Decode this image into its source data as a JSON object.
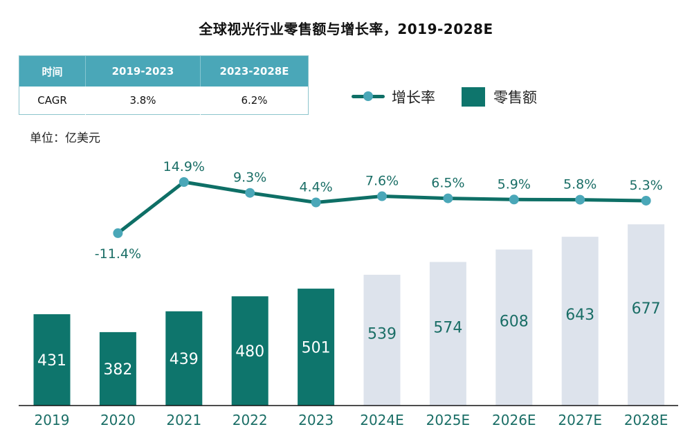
{
  "title": "全球视光行业零售额与增长率，2019-2028E",
  "cagr_table": {
    "headers": [
      "时间",
      "2019-2023",
      "2023-2028E"
    ],
    "row": [
      "CAGR",
      "3.8%",
      "6.2%"
    ]
  },
  "unit_label": "单位：亿美元",
  "legend": {
    "line_label": "增长率",
    "bar_label": "零售额"
  },
  "colors": {
    "actual_bar": "#0e756c",
    "forecast_bar": "#dde3ec",
    "line": "#0e6f66",
    "marker": "#4aa7b8",
    "label_text": "#1a6e66",
    "axis": "#111111"
  },
  "chart_data": {
    "type": "bar",
    "title": "全球视光行业零售额与增长率，2019-2028E",
    "xlabel": "",
    "ylabel": "亿美元",
    "categories": [
      "2019",
      "2020",
      "2021",
      "2022",
      "2023",
      "2024E",
      "2025E",
      "2026E",
      "2027E",
      "2028E"
    ],
    "series": [
      {
        "name": "零售额",
        "type": "bar",
        "values": [
          431,
          382,
          439,
          480,
          501,
          539,
          574,
          608,
          643,
          677
        ],
        "forecast_from_index": 5
      },
      {
        "name": "增长率",
        "type": "line",
        "unit": "%",
        "values": [
          null,
          -11.4,
          14.9,
          9.3,
          4.4,
          7.6,
          6.5,
          5.9,
          5.8,
          5.3
        ],
        "labels": [
          "",
          "-11.4%",
          "14.9%",
          "9.3%",
          "4.4%",
          "7.6%",
          "6.5%",
          "5.9%",
          "5.8%",
          "5.3%"
        ]
      }
    ],
    "bar_ylim": [
      200,
      700
    ],
    "grid": false,
    "legend_position": "top-right"
  }
}
